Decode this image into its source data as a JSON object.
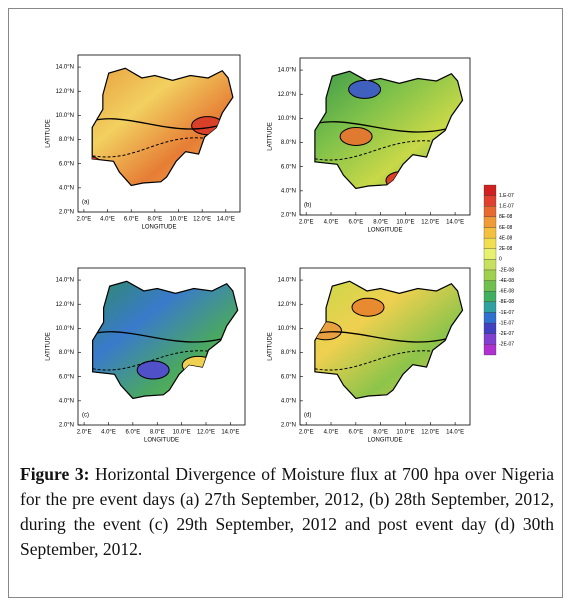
{
  "panels": [
    {
      "label": "(a)",
      "x_axis_title": "LONGITUDE",
      "y_axis_title": "LATITUDE"
    },
    {
      "label": "(b)",
      "x_axis_title": "LONGITUDE",
      "y_axis_title": "LATITUDE"
    },
    {
      "label": "(c)",
      "x_axis_title": "LONGITUDE",
      "y_axis_title": "LATITUDE"
    },
    {
      "label": "(d)",
      "x_axis_title": "LONGITUDE",
      "y_axis_title": "LATITUDE"
    }
  ],
  "x_tick_labels": [
    "2.0°E",
    "4.0°E",
    "6.0°E",
    "8.0°E",
    "10.0°E",
    "12.0°E",
    "14.0°E"
  ],
  "y_tick_labels": [
    "2.0°N",
    "4.0°N",
    "6.0°N",
    "8.0°N",
    "10.0°N",
    "12.0°N",
    "14.0°N"
  ],
  "colorbar_labels": [
    "1.E-07",
    "1.E-07",
    "8E-08",
    "6E-08",
    "4E-08",
    "2E-08",
    "0",
    "-2E-08",
    "-4E-08",
    "-6E-08",
    "-8E-08",
    "-1E-07",
    "-1E-07",
    "-2E-07",
    "-2E-07"
  ],
  "caption": {
    "figure_label": "Figure 3:",
    "text": "Horizontal Divergence of Moisture flux at 700 hpa over Nigeria for the pre event days (a) 27th September, 2012, (b) 28th September, 2012, during the event (c) 29th September, 2012 and post event day (d) 30th September, 2012."
  }
}
